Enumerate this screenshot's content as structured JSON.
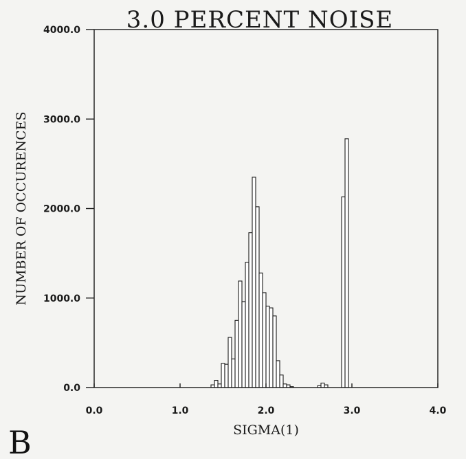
{
  "chart_data": {
    "type": "bar",
    "title": "3.0 PERCENT NOISE",
    "xlabel": "SIGMA(1)",
    "ylabel": "NUMBER OF OCCURENCES",
    "panel_label": "B",
    "xlim": [
      0.0,
      4.0
    ],
    "ylim": [
      0.0,
      4000.0
    ],
    "x_ticks": [
      "0.0",
      "1.0",
      "2.0",
      "3.0",
      "4.0"
    ],
    "y_ticks": [
      "0.0",
      "1000.0",
      "2000.0",
      "3000.0",
      "4000.0"
    ],
    "bin_width": 0.04,
    "x": [
      1.38,
      1.42,
      1.46,
      1.5,
      1.54,
      1.58,
      1.62,
      1.66,
      1.7,
      1.74,
      1.78,
      1.82,
      1.86,
      1.9,
      1.94,
      1.98,
      2.02,
      2.06,
      2.1,
      2.14,
      2.18,
      2.22,
      2.26,
      2.3,
      2.62,
      2.66,
      2.7,
      2.9,
      2.94
    ],
    "values": [
      30,
      80,
      40,
      270,
      260,
      560,
      320,
      750,
      1190,
      960,
      1400,
      1730,
      2350,
      2020,
      1280,
      1060,
      910,
      890,
      800,
      300,
      140,
      40,
      30,
      10,
      20,
      50,
      30,
      2130,
      2780
    ]
  }
}
